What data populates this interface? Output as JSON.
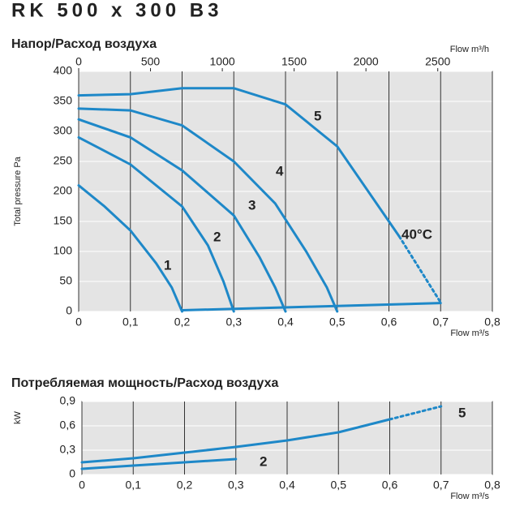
{
  "header": {
    "title": "RK 500 x 300 B3"
  },
  "chart_data": [
    {
      "type": "line",
      "title": "Напор/Расход воздуха",
      "y_label": "Total pressure Pa",
      "x_label": "Flow m³/s",
      "x2_label": "Flow m³/h",
      "xlim": [
        0,
        0.8
      ],
      "xticks": [
        0,
        {
          "value": 0.1,
          "label": "0,1"
        },
        {
          "value": 0.2,
          "label": "0,2"
        },
        {
          "value": 0.3,
          "label": "0,3"
        },
        {
          "value": 0.4,
          "label": "0,4"
        },
        {
          "value": 0.5,
          "label": "0,5"
        },
        {
          "value": 0.6,
          "label": "0,6"
        },
        {
          "value": 0.7,
          "label": "0,7"
        },
        {
          "value": 0.8,
          "label": "0,8"
        }
      ],
      "x2lim": [
        0,
        2880
      ],
      "x2ticks": [
        0,
        500,
        1000,
        1500,
        2000,
        2500
      ],
      "ylim": [
        0,
        400
      ],
      "yticks": [
        0,
        50,
        100,
        150,
        200,
        250,
        300,
        350,
        400
      ],
      "grid": true,
      "annotations": [
        "40°C"
      ],
      "series": [
        {
          "name": "1",
          "color": "#1e88c8",
          "x": [
            0,
            0.05,
            0.1,
            0.15,
            0.18,
            0.2
          ],
          "values": [
            210,
            175,
            135,
            80,
            40,
            0
          ]
        },
        {
          "name": "2",
          "color": "#1e88c8",
          "x": [
            0,
            0.1,
            0.2,
            0.25,
            0.28,
            0.3
          ],
          "values": [
            290,
            245,
            175,
            110,
            50,
            0
          ]
        },
        {
          "name": "3",
          "color": "#1e88c8",
          "x": [
            0,
            0.1,
            0.2,
            0.3,
            0.35,
            0.38,
            0.4
          ],
          "values": [
            320,
            290,
            235,
            160,
            90,
            40,
            0
          ]
        },
        {
          "name": "4",
          "color": "#1e88c8",
          "x": [
            0,
            0.1,
            0.2,
            0.3,
            0.38,
            0.44,
            0.48,
            0.5
          ],
          "values": [
            338,
            335,
            310,
            250,
            180,
            100,
            40,
            0
          ]
        },
        {
          "name": "5",
          "color": "#1e88c8",
          "x": [
            0,
            0.1,
            0.2,
            0.3,
            0.4,
            0.5,
            0.6,
            0.62
          ],
          "values": [
            360,
            362,
            372,
            372,
            345,
            275,
            150,
            125
          ]
        },
        {
          "color": "#1e88c8",
          "style": "dotted",
          "x": [
            0.62,
            0.66,
            0.7
          ],
          "values": [
            125,
            70,
            15
          ]
        },
        {
          "color": "#1e88c8",
          "x": [
            0.2,
            0.45,
            0.7
          ],
          "values": [
            2,
            8,
            14
          ]
        }
      ]
    },
    {
      "type": "line",
      "title": "Потребляемая мощность/Расход воздуха",
      "y_label": "kW",
      "x_label": "Flow m³/s",
      "xlim": [
        0,
        0.8
      ],
      "xticks": [
        0,
        {
          "value": 0.1,
          "label": "0,1"
        },
        {
          "value": 0.2,
          "label": "0,2"
        },
        {
          "value": 0.3,
          "label": "0,3"
        },
        {
          "value": 0.4,
          "label": "0,4"
        },
        {
          "value": 0.5,
          "label": "0,5"
        },
        {
          "value": 0.6,
          "label": "0,6"
        },
        {
          "value": 0.7,
          "label": "0,7"
        },
        {
          "value": 0.8,
          "label": "0,8"
        }
      ],
      "ylim": [
        0,
        0.9
      ],
      "yticks": [
        0,
        {
          "value": 0.3,
          "label": "0,3"
        },
        {
          "value": 0.6,
          "label": "0,6"
        },
        {
          "value": 0.9,
          "label": "0,9"
        }
      ],
      "grid": true,
      "series": [
        {
          "name": "5",
          "color": "#1e88c8",
          "x": [
            0,
            0.1,
            0.2,
            0.3,
            0.4,
            0.5,
            0.6
          ],
          "values": [
            0.15,
            0.2,
            0.27,
            0.34,
            0.42,
            0.52,
            0.68
          ]
        },
        {
          "color": "#1e88c8",
          "style": "dotted",
          "x": [
            0.6,
            0.7
          ],
          "values": [
            0.68,
            0.84
          ]
        },
        {
          "name": "2",
          "color": "#1e88c8",
          "x": [
            0,
            0.1,
            0.2,
            0.3
          ],
          "values": [
            0.07,
            0.11,
            0.15,
            0.19
          ]
        }
      ]
    }
  ]
}
